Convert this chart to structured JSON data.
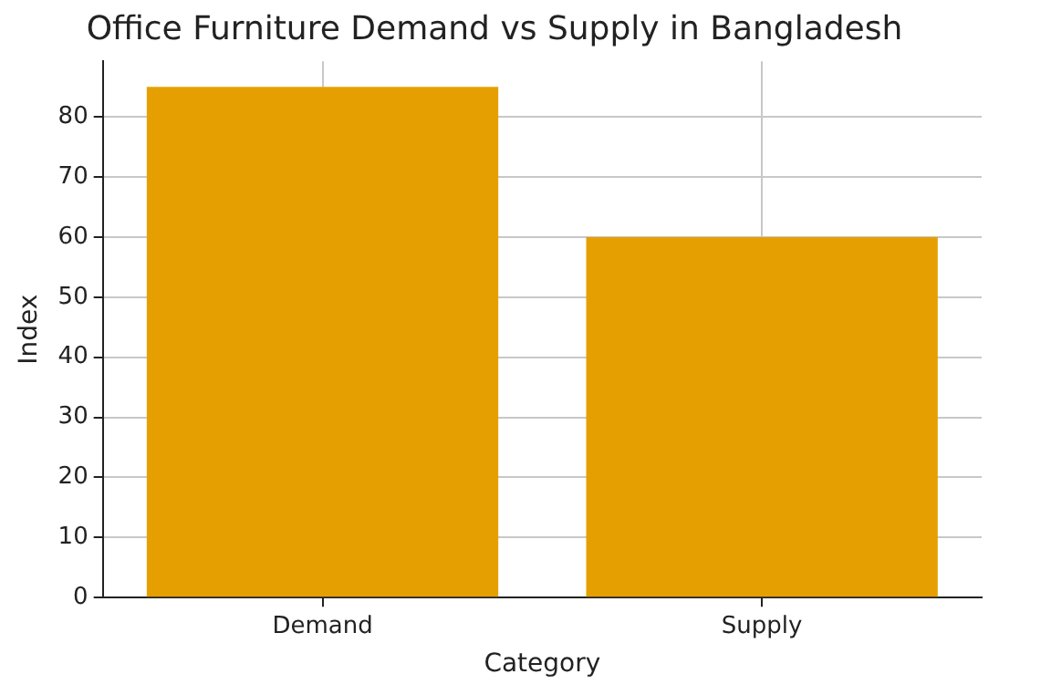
{
  "chart_data": {
    "type": "bar",
    "title": "Office Furniture Demand vs Supply in Bangladesh",
    "xlabel": "Category",
    "ylabel": "Index",
    "categories": [
      "Demand",
      "Supply"
    ],
    "values": [
      85,
      60
    ],
    "color": "#e69f00",
    "ylim": [
      0,
      89.25
    ],
    "yticks": [
      0,
      10,
      20,
      30,
      40,
      50,
      60,
      70,
      80
    ],
    "grid": true
  }
}
